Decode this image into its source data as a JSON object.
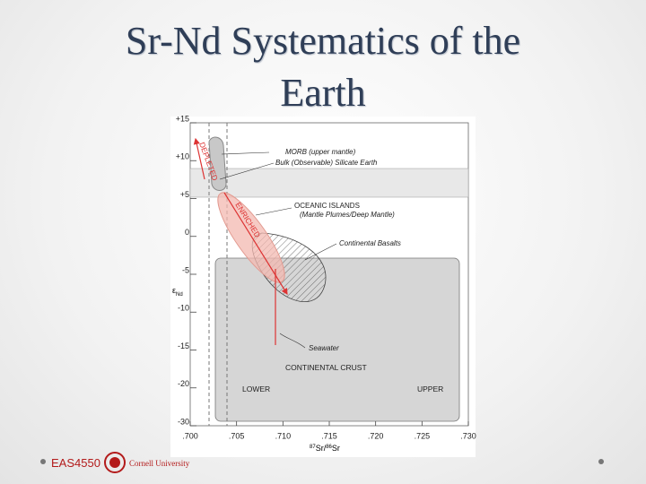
{
  "title": {
    "line1": "Sr-Nd Systematics of the",
    "line2": "Earth"
  },
  "figure": {
    "y_ticks": [
      "+15",
      "+10",
      "+5",
      "0",
      "-5",
      "-10",
      "-15",
      "-20",
      "-30"
    ],
    "x_ticks": [
      ".700",
      ".705",
      ".710",
      ".715",
      ".720",
      ".725",
      ".730"
    ],
    "y_label": {
      "symbol": "ε",
      "subscript": "Nd"
    },
    "x_label": {
      "sup1": "87",
      "part1": "Sr/",
      "sup2": "86",
      "part2": "Sr"
    },
    "annotations": {
      "morb": "MORB (upper mantle)",
      "bse": "Bulk (Observable) Silicate Earth",
      "oib": "OCEANIC ISLANDS",
      "oib_sub": "(Mantle Plumes/Deep Mantle)",
      "basalts": "Continental Basalts",
      "seawater": "Seawater",
      "crust": "CONTINENTAL CRUST",
      "lower": "LOWER",
      "upper": "UPPER",
      "depleted": "DEPLETED",
      "enriched": "ENRICHED"
    }
  },
  "footer": {
    "course": "EAS4550",
    "university": "Cornell University"
  }
}
